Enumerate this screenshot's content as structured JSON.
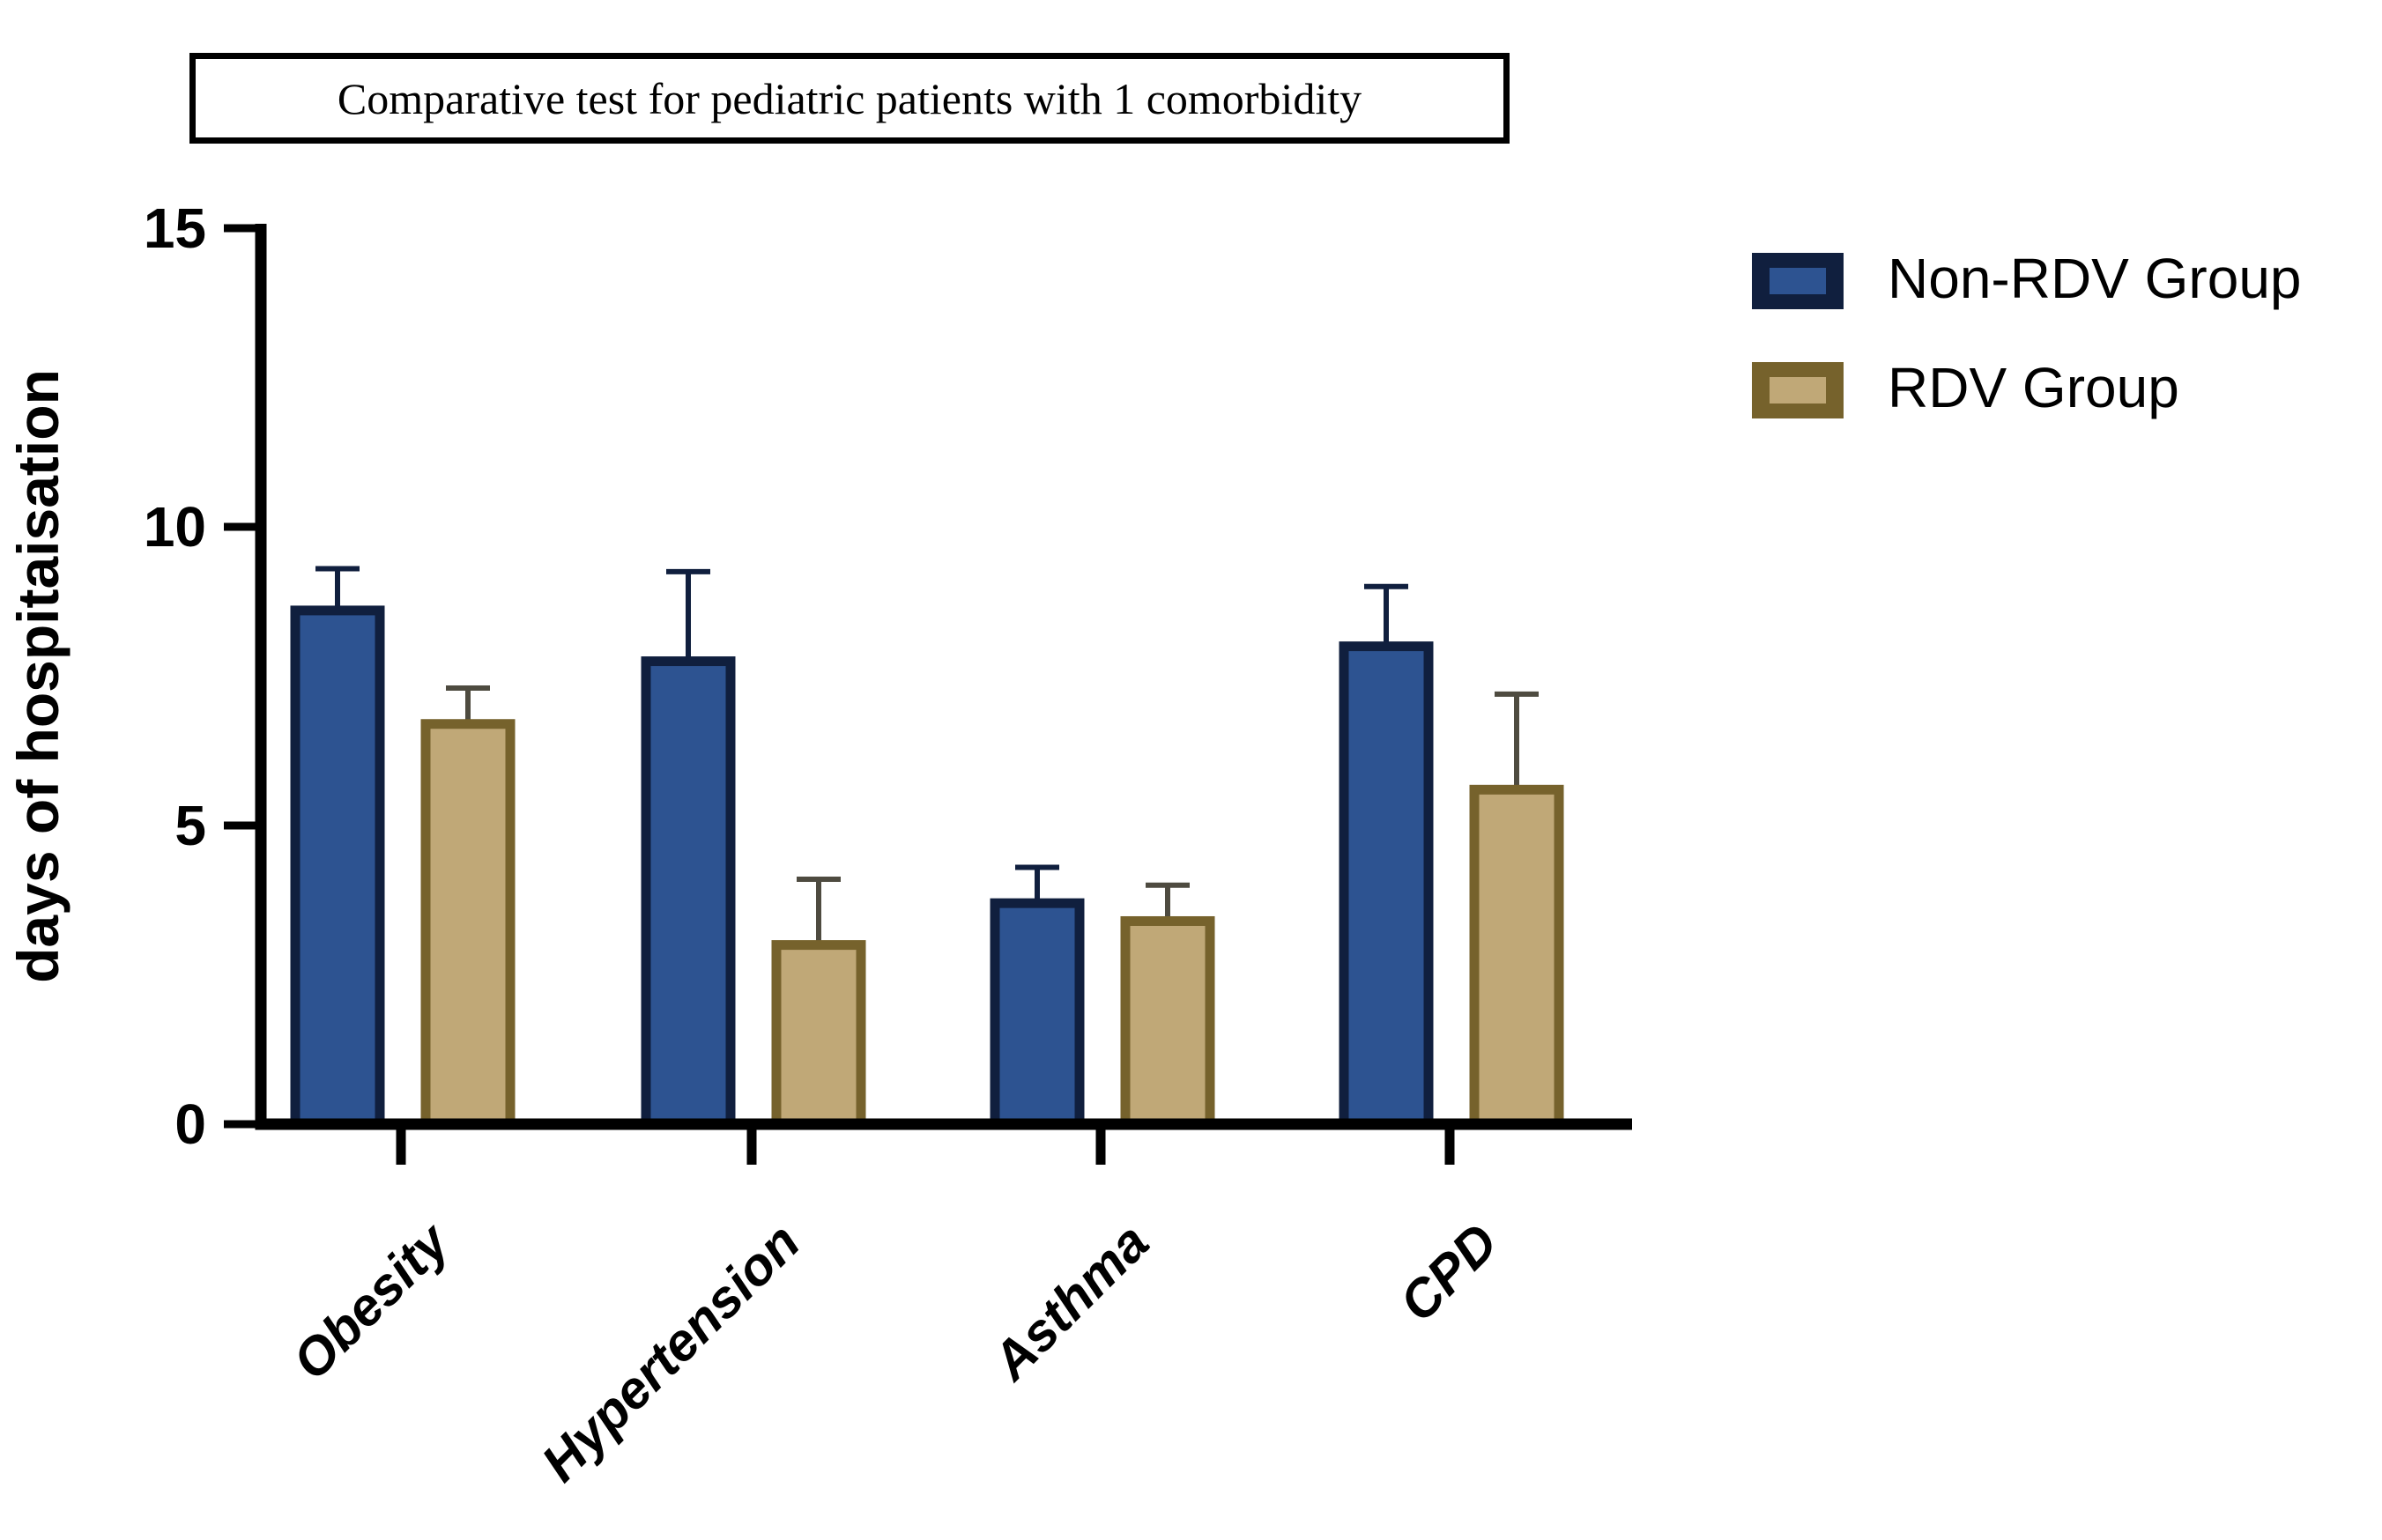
{
  "chart_data": {
    "type": "bar",
    "title": "Comparative test for pediatric patients with 1 comorbidity",
    "xlabel": "",
    "ylabel": "days of hospitaisation",
    "categories": [
      "Obesity",
      "Hypertension",
      "Asthma",
      "CPD"
    ],
    "series": [
      {
        "name": "Non-RDV Group",
        "values": [
          8.6,
          7.75,
          3.7,
          8.0
        ],
        "errors_upper": [
          0.7,
          1.5,
          0.6,
          1.0
        ],
        "fill_color": "#2d5391",
        "border_color": "#101f3e",
        "error_color": "#101f3e"
      },
      {
        "name": "RDV Group",
        "values": [
          6.7,
          3.0,
          3.4,
          5.6
        ],
        "errors_upper": [
          0.6,
          1.1,
          0.6,
          1.6
        ],
        "fill_color": "#c0a877",
        "border_color": "#76622c",
        "error_color": "#4e4b40"
      }
    ],
    "ylim": [
      0,
      15
    ],
    "yticks": [
      0,
      5,
      10,
      15
    ],
    "grid": false,
    "error_bars": "upper_only",
    "legend_position": "top-right",
    "axis_color": "#000000",
    "text_color": "#000000"
  }
}
